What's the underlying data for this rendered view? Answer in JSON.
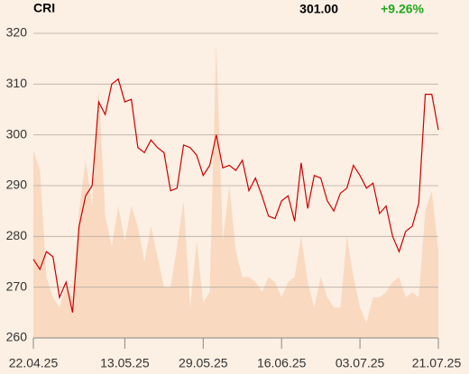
{
  "header": {
    "symbol": "CRI",
    "price": {
      "value": 301,
      "label": "301.00"
    },
    "change": {
      "value": 9.26,
      "label": "+9.26%"
    }
  },
  "chart_data": {
    "type": "line",
    "categories": [
      "22.04.25",
      null,
      null,
      null,
      null,
      null,
      null,
      null,
      null,
      null,
      null,
      null,
      null,
      null,
      "13.05.25",
      null,
      null,
      null,
      null,
      null,
      null,
      null,
      null,
      null,
      null,
      null,
      "29.05.25",
      null,
      null,
      null,
      null,
      null,
      null,
      null,
      null,
      null,
      null,
      null,
      "16.06.25",
      null,
      null,
      null,
      null,
      null,
      null,
      null,
      null,
      null,
      null,
      null,
      "03.07.25",
      null,
      null,
      null,
      null,
      null,
      null,
      null,
      null,
      null,
      null,
      null,
      "21.07.25"
    ],
    "values": [
      275.5,
      273.5,
      277,
      276,
      268,
      271,
      265,
      282,
      288,
      290,
      306.5,
      304,
      310,
      311,
      306.5,
      307,
      297.5,
      296.5,
      299,
      297.5,
      296.5,
      289,
      289.5,
      298,
      297.5,
      296,
      292,
      294,
      300,
      293.5,
      294,
      293,
      295,
      289,
      291.5,
      288,
      284,
      283.5,
      287,
      288,
      283,
      294.5,
      285.5,
      292,
      291.5,
      287,
      285,
      288.5,
      289.5,
      294,
      292,
      289.5,
      290.5,
      284.5,
      286,
      280,
      277,
      281,
      282,
      286.5,
      308,
      308,
      301
    ],
    "area_values": [
      297,
      293,
      272,
      268,
      266,
      270,
      268,
      285,
      295,
      286,
      309,
      284,
      278,
      286,
      279,
      286,
      282,
      275,
      282,
      276,
      270,
      270,
      278,
      287,
      266,
      279,
      267,
      269,
      318,
      279,
      290,
      277,
      272,
      272,
      271,
      269,
      272,
      271,
      268,
      271,
      272,
      280,
      271,
      266,
      272,
      268,
      266,
      266,
      280,
      272,
      266,
      263,
      268,
      268,
      269,
      271,
      272,
      268,
      269,
      268,
      285,
      289,
      277
    ],
    "color": "#cc0000",
    "area_color": "#f9d9c0",
    "change_color": "#1fa81f",
    "ylim": [
      260,
      320
    ],
    "yticks": [
      260,
      270,
      280,
      290,
      300,
      310,
      320
    ],
    "grid": true
  }
}
